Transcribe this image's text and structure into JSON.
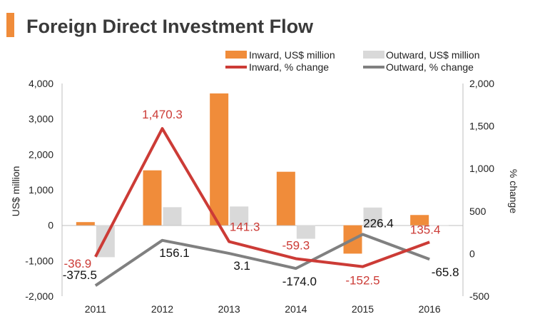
{
  "colors": {
    "accent": "#f08c3a",
    "inward_bar": "#f08c3a",
    "outward_bar": "#d9d9d9",
    "inward_line": "#cc3b36",
    "outward_line": "#808080",
    "title": "#3a3a3a"
  },
  "chart_data": {
    "type": "bar",
    "title": "Foreign Direct Investment Flow",
    "categories": [
      "2011",
      "2012",
      "2013",
      "2014",
      "2015",
      "2016"
    ],
    "y_left": {
      "label": "US$ million",
      "range": [
        -2000,
        4000
      ],
      "ticks": [
        4000,
        3000,
        2000,
        1000,
        0,
        -1000,
        -2000
      ],
      "tick_labels": [
        "4,000",
        "3,000",
        "2,000",
        "1,000",
        "0",
        "-1,000",
        "-2,000"
      ]
    },
    "y_right": {
      "label": "% change",
      "range": [
        -500,
        2000
      ],
      "ticks": [
        2000,
        1500,
        1000,
        500,
        0,
        -500
      ],
      "tick_labels": [
        "2,000",
        "1,500",
        "1,000",
        "500",
        "0",
        "-500"
      ]
    },
    "grid": false,
    "legend_position": "top",
    "series": [
      {
        "name": "Inward, US$ million",
        "kind": "bar",
        "axis": "left",
        "values": [
          90,
          1550,
          3720,
          1510,
          -800,
          290
        ]
      },
      {
        "name": "Outward, US$ million",
        "kind": "bar",
        "axis": "left",
        "values": [
          -900,
          510,
          530,
          -380,
          500,
          -10
        ]
      },
      {
        "name": "Inward, % change",
        "kind": "line",
        "axis": "right",
        "values": [
          -36.9,
          1470.3,
          141.3,
          -59.3,
          -152.5,
          135.4
        ],
        "labels": [
          "-36.9",
          "1,470.3",
          "141.3",
          "-59.3",
          "-152.5",
          "135.4"
        ]
      },
      {
        "name": "Outward, % change",
        "kind": "line",
        "axis": "right",
        "values": [
          -375.5,
          156.1,
          3.1,
          -174.0,
          226.4,
          -65.8
        ],
        "labels": [
          "-375.5",
          "156.1",
          "3.1",
          "-174.0",
          "226.4",
          "-65.8"
        ]
      }
    ]
  }
}
